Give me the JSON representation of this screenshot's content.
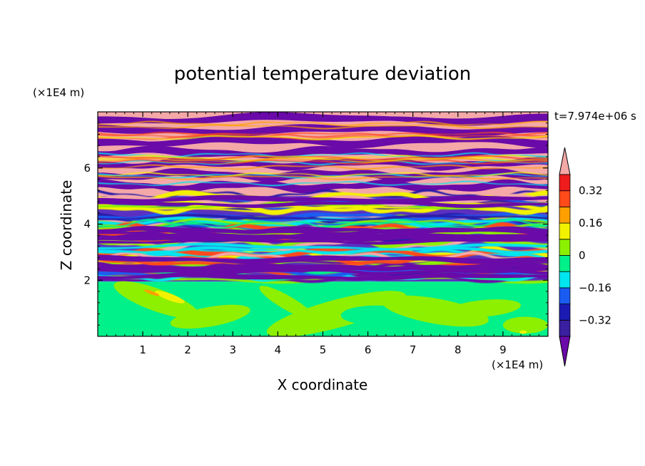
{
  "chart_data": {
    "type": "heatmap",
    "title": "potential temperature deviation",
    "xlabel": "X coordinate",
    "ylabel": "Z coordinate",
    "x_unit": "(×1E4 m)",
    "y_unit": "(×1E4 m)",
    "time_label": "t=7.974e+06 s",
    "xlim": [
      0,
      10
    ],
    "ylim": [
      0,
      8
    ],
    "x_ticks": [
      1,
      2,
      3,
      4,
      5,
      6,
      7,
      8,
      9
    ],
    "y_ticks": [
      2,
      4,
      6
    ],
    "colorbar": {
      "levels": [
        -0.4,
        -0.32,
        -0.24,
        -0.16,
        -0.08,
        0,
        0.08,
        0.16,
        0.24,
        0.32,
        0.4
      ],
      "labels": [
        "0.32",
        "0.16",
        "0",
        "−0.16",
        "−0.32"
      ],
      "label_values": [
        0.32,
        0.16,
        0,
        -0.16,
        -0.32
      ],
      "colors": [
        "#6a0aa8",
        "#3a1fa0",
        "#1b1bb4",
        "#1a5cf2",
        "#00e6f0",
        "#00f08a",
        "#8cf000",
        "#f2f200",
        "#ffa000",
        "#ff4a1a",
        "#ee1c1c",
        "#f4a8a8"
      ],
      "extend": "both"
    },
    "layers": [
      {
        "z": [
          0.0,
          1.9
        ],
        "value": 0.02,
        "description_color": "#00f08a"
      },
      {
        "z": [
          1.9,
          3.5
        ],
        "value": -0.2,
        "pattern": "mixed"
      },
      {
        "z": [
          3.5,
          5.1
        ],
        "value": 0.1,
        "pattern": "mixed"
      },
      {
        "z": [
          5.1,
          8.0
        ],
        "value": 0.0,
        "pattern": "alternating"
      }
    ]
  }
}
